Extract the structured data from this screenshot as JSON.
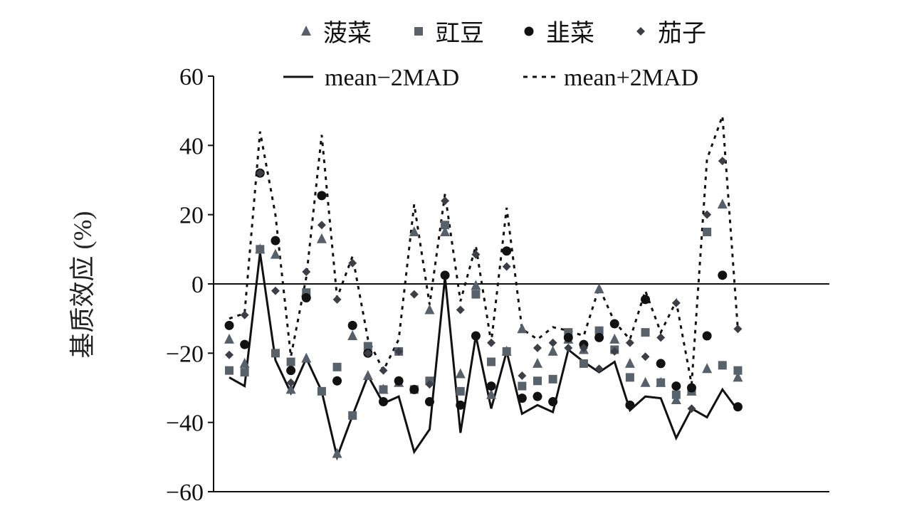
{
  "chart_data": {
    "type": "scatter",
    "title": "",
    "xlabel": "",
    "ylabel": "基质效应 (%)",
    "ylim": [
      -60,
      60
    ],
    "yticks": [
      60,
      40,
      20,
      0,
      -20,
      -40,
      -60
    ],
    "ytick_labels": [
      "60",
      "40",
      "20",
      "0",
      "−20",
      "−40",
      "−60"
    ],
    "legend_position": "top",
    "n_points": 34,
    "series": [
      {
        "name": "菠菜",
        "marker": "triangle",
        "color": "#55606a",
        "values": [
          -16,
          -23,
          10,
          8.5,
          -30.5,
          -21.5,
          13,
          -49,
          -15,
          -26.5,
          -30.5,
          -28.5,
          15,
          -7.5,
          15,
          -26,
          -0.5,
          -32,
          -19.5,
          -13,
          -23,
          -19.5,
          -16,
          -19,
          -1.5,
          -16,
          -23,
          -28.5,
          -28.5,
          -33.5,
          -31,
          -24.5,
          23,
          -27
        ]
      },
      {
        "name": "豇豆",
        "marker": "square",
        "color": "#58626b",
        "values": [
          -25,
          -25.5,
          10,
          -20,
          -22.5,
          -2.5,
          -31,
          -24,
          -38,
          -18,
          -30.5,
          -19.5,
          -30.5,
          -28,
          17,
          -31,
          -3,
          -22.5,
          -19.5,
          -29.5,
          -28,
          -27.5,
          -14,
          -23,
          -13.5,
          -19,
          -27,
          -14,
          -28.5,
          -32,
          -31,
          15,
          -23.5,
          -25
        ]
      },
      {
        "name": "韭菜",
        "marker": "circle",
        "color": "#111111",
        "values": [
          -12,
          -17.5,
          32,
          12.5,
          -25,
          -4,
          25.5,
          -28,
          -12,
          -20,
          -34,
          -28,
          -30.5,
          -34,
          2.5,
          -35,
          -15,
          -29.5,
          9.5,
          -33,
          -32.5,
          -34,
          -15.5,
          -17.5,
          -15.5,
          -11.5,
          -35,
          -4.5,
          -23,
          -29.5,
          -30,
          -15,
          2.5,
          -35.5
        ]
      },
      {
        "name": "茄子",
        "marker": "diamond",
        "color": "#3c4046",
        "values": [
          -20.5,
          -9,
          32,
          -2,
          -28.5,
          3.5,
          17,
          -4.5,
          6,
          -20,
          -25,
          -19.5,
          -3,
          -29,
          24,
          -7.5,
          8.5,
          -17,
          5,
          -26.5,
          -18.5,
          -17,
          -18.5,
          -18.5,
          -24.5,
          -19.5,
          -17,
          -21,
          -15.5,
          -5.5,
          -36,
          20,
          35.5,
          -13
        ]
      },
      {
        "name": "mean−2MAD",
        "marker": "line-solid",
        "color": "#111111",
        "values": [
          -27,
          -29.5,
          9,
          -22,
          -31.5,
          -21.5,
          -31,
          -50,
          -38,
          -26.5,
          -34.5,
          -32.5,
          -48.5,
          -42,
          2,
          -43,
          -15,
          -36,
          -19.5,
          -37.5,
          -35,
          -37,
          -19,
          -22.5,
          -25.5,
          -22.5,
          -36.5,
          -32.5,
          -33,
          -44.5,
          -36,
          -38.5,
          -30.5,
          -36.5
        ]
      },
      {
        "name": "mean+2MAD",
        "marker": "line-dashed",
        "color": "#111111",
        "values": [
          -10,
          -8.5,
          44,
          20,
          -21,
          2,
          43,
          -4,
          8,
          -16,
          -25,
          -16,
          23,
          -6,
          26,
          -5,
          11,
          -17,
          22,
          -13,
          -16,
          -12.5,
          -13.5,
          -15,
          -1,
          -11,
          -16,
          -2,
          -14,
          -5,
          -29,
          36,
          48.5,
          -13
        ]
      }
    ]
  }
}
